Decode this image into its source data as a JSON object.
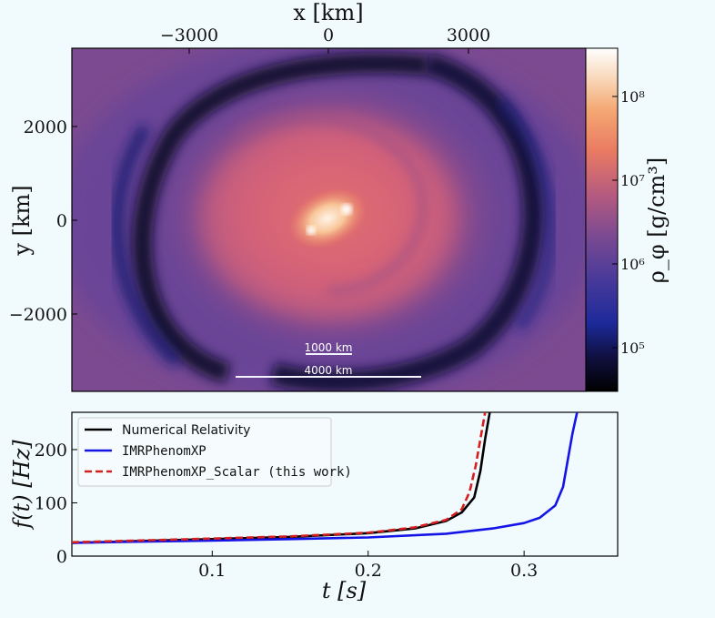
{
  "colors": {
    "background": "#f1fbfd",
    "nr": "#000000",
    "imrphenomxp": "#1414e6",
    "scalar": "#d61e1e",
    "scalebar": "#f4f4ff"
  },
  "top_panel": {
    "x_axis_title": "x [km]",
    "x_ticks": [
      "−3000",
      "0",
      "3000"
    ],
    "y_axis_title": "y [km]",
    "y_ticks": [
      "2000",
      "0",
      "−2000"
    ],
    "colorbar_label": "ρ_φ [g/cm³]",
    "colorbar_ticks": [
      "10⁸",
      "10⁷",
      "10⁶",
      "10⁵"
    ],
    "colormap": "magma-like (black → blue → purple → orange → white)",
    "scalebars": [
      {
        "label": "1000 km"
      },
      {
        "label": "4000 km"
      }
    ]
  },
  "chart_data": {
    "type": "line",
    "xlabel": "t [s]",
    "ylabel": "f(t) [Hz]",
    "xlim": [
      0.01,
      0.36
    ],
    "ylim": [
      0,
      270
    ],
    "x_ticks": [
      "0.1",
      "0.2",
      "0.3"
    ],
    "y_ticks": [
      "0",
      "100",
      "200"
    ],
    "legend_position": "upper-left",
    "series": [
      {
        "name": "Numerical Relativity",
        "style": "solid",
        "color": "#000000",
        "points": [
          [
            0.01,
            25
          ],
          [
            0.05,
            28
          ],
          [
            0.1,
            32
          ],
          [
            0.15,
            36
          ],
          [
            0.2,
            43
          ],
          [
            0.23,
            52
          ],
          [
            0.25,
            66
          ],
          [
            0.26,
            82
          ],
          [
            0.268,
            110
          ],
          [
            0.272,
            160
          ],
          [
            0.275,
            220
          ],
          [
            0.278,
            270
          ]
        ]
      },
      {
        "name": "IMRPhenomXP",
        "style": "solid",
        "color": "#1414e6",
        "points": [
          [
            0.01,
            25
          ],
          [
            0.05,
            27
          ],
          [
            0.1,
            29
          ],
          [
            0.15,
            32
          ],
          [
            0.2,
            35
          ],
          [
            0.25,
            42
          ],
          [
            0.28,
            52
          ],
          [
            0.3,
            62
          ],
          [
            0.31,
            72
          ],
          [
            0.32,
            95
          ],
          [
            0.325,
            130
          ],
          [
            0.328,
            180
          ],
          [
            0.331,
            230
          ],
          [
            0.334,
            270
          ]
        ]
      },
      {
        "name": "IMRPhenomXP_Scalar (this work)",
        "style": "dashed",
        "color": "#d61e1e",
        "points": [
          [
            0.01,
            26
          ],
          [
            0.05,
            29
          ],
          [
            0.1,
            33
          ],
          [
            0.15,
            37
          ],
          [
            0.2,
            44
          ],
          [
            0.23,
            54
          ],
          [
            0.25,
            68
          ],
          [
            0.26,
            88
          ],
          [
            0.265,
            120
          ],
          [
            0.269,
            170
          ],
          [
            0.272,
            220
          ],
          [
            0.275,
            270
          ]
        ]
      }
    ]
  }
}
